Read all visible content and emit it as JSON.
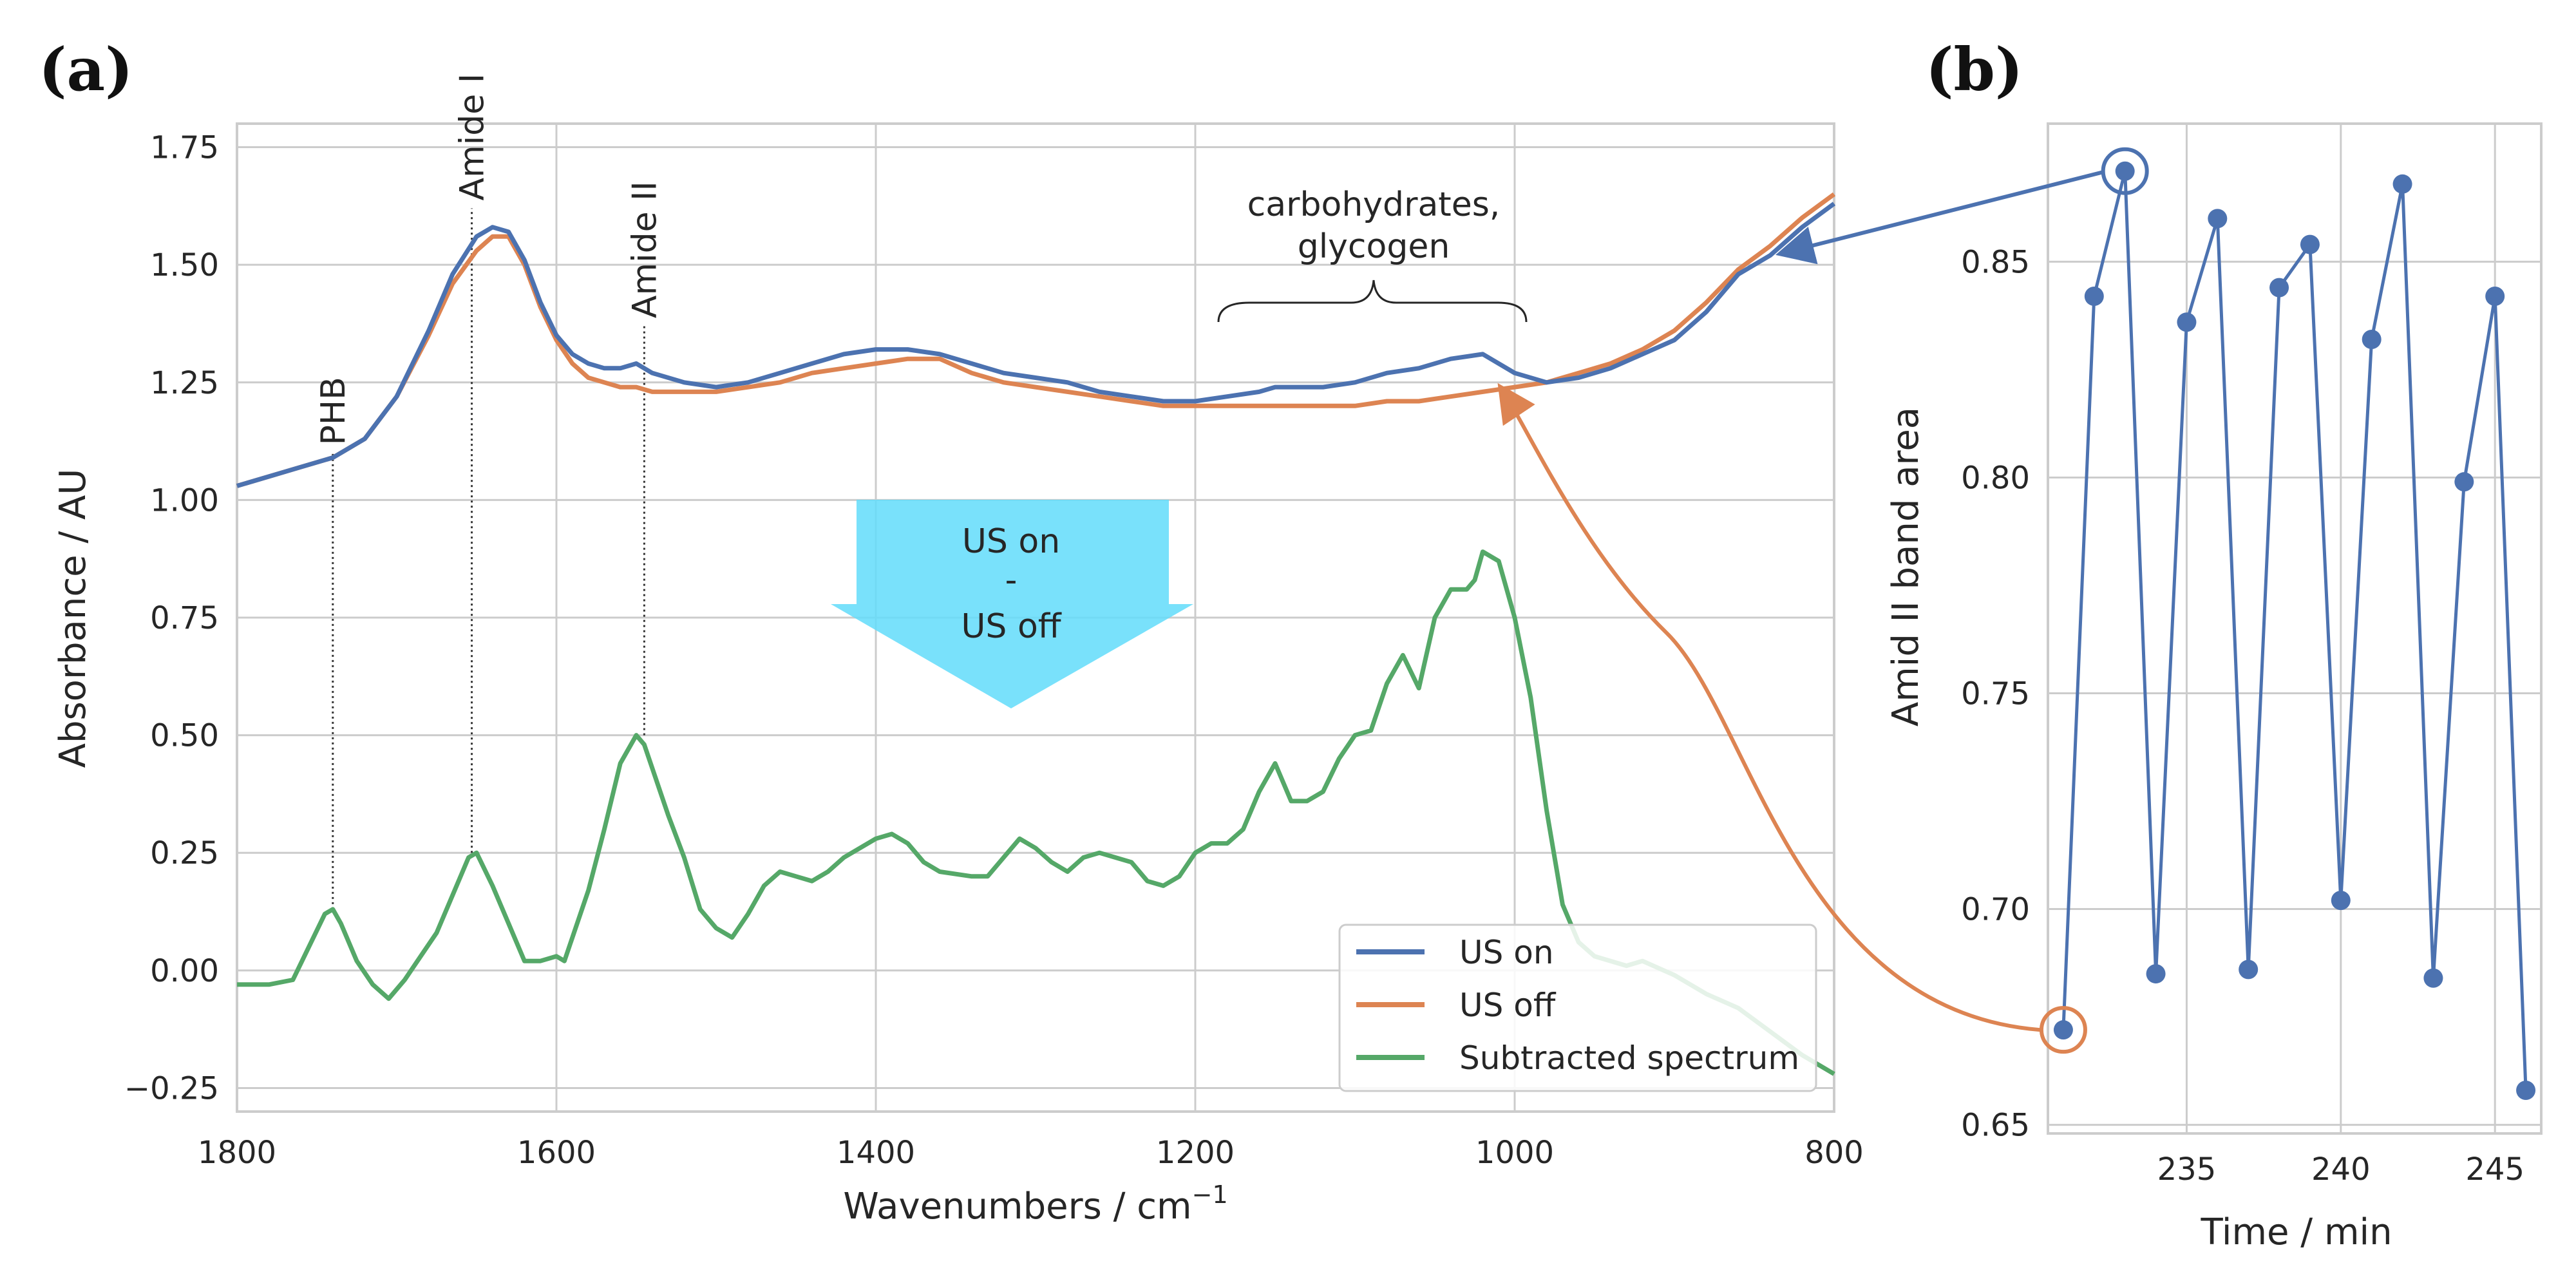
{
  "chart_data": [
    {
      "panel_label": "(a)",
      "type": "line",
      "xlabel": "Wavenumbers / cm",
      "xlabel_sup": "−1",
      "ylabel": "Absorbance / AU",
      "xlim": [
        1800,
        800
      ],
      "ylim": [
        -0.3,
        1.8
      ],
      "x_ticks": [
        1800,
        1600,
        1400,
        1200,
        1000,
        800
      ],
      "x_tick_labels": [
        "1800",
        "1600",
        "1400",
        "1200",
        "1000",
        "800"
      ],
      "y_ticks": [
        -0.25,
        0,
        0.25,
        0.5,
        0.75,
        1.0,
        1.25,
        1.5,
        1.75
      ],
      "y_tick_labels": [
        "−0.25",
        "0.00",
        "0.25",
        "0.50",
        "0.75",
        "1.00",
        "1.25",
        "1.50",
        "1.75"
      ],
      "series": [
        {
          "name": "US on",
          "color": "#4c72b0",
          "x": [
            1800,
            1780,
            1760,
            1740,
            1720,
            1700,
            1680,
            1665,
            1650,
            1640,
            1630,
            1620,
            1610,
            1600,
            1590,
            1580,
            1570,
            1560,
            1550,
            1540,
            1520,
            1500,
            1480,
            1460,
            1440,
            1420,
            1400,
            1380,
            1360,
            1340,
            1320,
            1300,
            1280,
            1260,
            1240,
            1220,
            1200,
            1180,
            1160,
            1150,
            1140,
            1120,
            1100,
            1080,
            1060,
            1040,
            1020,
            1000,
            980,
            960,
            940,
            920,
            900,
            880,
            860,
            840,
            820,
            800
          ],
          "y": [
            1.03,
            1.05,
            1.07,
            1.09,
            1.13,
            1.22,
            1.36,
            1.48,
            1.56,
            1.58,
            1.57,
            1.51,
            1.42,
            1.35,
            1.31,
            1.29,
            1.28,
            1.28,
            1.29,
            1.27,
            1.25,
            1.24,
            1.25,
            1.27,
            1.29,
            1.31,
            1.32,
            1.32,
            1.31,
            1.29,
            1.27,
            1.26,
            1.25,
            1.23,
            1.22,
            1.21,
            1.21,
            1.22,
            1.23,
            1.24,
            1.24,
            1.24,
            1.25,
            1.27,
            1.28,
            1.3,
            1.31,
            1.27,
            1.25,
            1.26,
            1.28,
            1.31,
            1.34,
            1.4,
            1.48,
            1.52,
            1.58,
            1.63
          ]
        },
        {
          "name": "US off",
          "color": "#dd8452",
          "x": [
            1800,
            1780,
            1760,
            1740,
            1720,
            1700,
            1680,
            1665,
            1650,
            1640,
            1630,
            1620,
            1610,
            1600,
            1590,
            1580,
            1570,
            1560,
            1550,
            1540,
            1520,
            1500,
            1480,
            1460,
            1440,
            1420,
            1400,
            1380,
            1360,
            1340,
            1320,
            1300,
            1280,
            1260,
            1240,
            1220,
            1200,
            1180,
            1160,
            1150,
            1140,
            1120,
            1100,
            1080,
            1060,
            1040,
            1020,
            1000,
            980,
            960,
            940,
            920,
            900,
            880,
            860,
            840,
            820,
            800
          ],
          "y": [
            1.03,
            1.05,
            1.07,
            1.09,
            1.13,
            1.22,
            1.35,
            1.46,
            1.53,
            1.56,
            1.56,
            1.5,
            1.41,
            1.34,
            1.29,
            1.26,
            1.25,
            1.24,
            1.24,
            1.23,
            1.23,
            1.23,
            1.24,
            1.25,
            1.27,
            1.28,
            1.29,
            1.3,
            1.3,
            1.27,
            1.25,
            1.24,
            1.23,
            1.22,
            1.21,
            1.2,
            1.2,
            1.2,
            1.2,
            1.2,
            1.2,
            1.2,
            1.2,
            1.21,
            1.21,
            1.22,
            1.23,
            1.24,
            1.25,
            1.27,
            1.29,
            1.32,
            1.36,
            1.42,
            1.49,
            1.54,
            1.6,
            1.65
          ]
        },
        {
          "name": "Subtracted spectrum",
          "color": "#55a868",
          "x": [
            1800,
            1780,
            1765,
            1755,
            1745,
            1740,
            1735,
            1725,
            1715,
            1705,
            1695,
            1685,
            1675,
            1665,
            1655,
            1650,
            1640,
            1630,
            1620,
            1610,
            1600,
            1595,
            1590,
            1580,
            1570,
            1560,
            1550,
            1545,
            1540,
            1530,
            1520,
            1510,
            1500,
            1490,
            1480,
            1470,
            1460,
            1450,
            1440,
            1430,
            1420,
            1400,
            1390,
            1380,
            1370,
            1360,
            1340,
            1330,
            1320,
            1310,
            1300,
            1290,
            1280,
            1270,
            1260,
            1250,
            1240,
            1230,
            1220,
            1210,
            1200,
            1190,
            1180,
            1170,
            1160,
            1150,
            1140,
            1130,
            1120,
            1110,
            1100,
            1090,
            1080,
            1070,
            1060,
            1050,
            1040,
            1030,
            1025,
            1020,
            1010,
            1000,
            990,
            980,
            970,
            960,
            950,
            930,
            920,
            900,
            880,
            860,
            840,
            820,
            800
          ],
          "y": [
            -0.03,
            -0.03,
            -0.02,
            0.05,
            0.12,
            0.13,
            0.1,
            0.02,
            -0.03,
            -0.06,
            -0.02,
            0.03,
            0.08,
            0.16,
            0.24,
            0.25,
            0.18,
            0.1,
            0.02,
            0.02,
            0.03,
            0.02,
            0.07,
            0.17,
            0.3,
            0.44,
            0.5,
            0.48,
            0.43,
            0.33,
            0.24,
            0.13,
            0.09,
            0.07,
            0.12,
            0.18,
            0.21,
            0.2,
            0.19,
            0.21,
            0.24,
            0.28,
            0.29,
            0.27,
            0.23,
            0.21,
            0.2,
            0.2,
            0.24,
            0.28,
            0.26,
            0.23,
            0.21,
            0.24,
            0.25,
            0.24,
            0.23,
            0.19,
            0.18,
            0.2,
            0.25,
            0.27,
            0.27,
            0.3,
            0.38,
            0.44,
            0.36,
            0.36,
            0.38,
            0.45,
            0.5,
            0.51,
            0.61,
            0.67,
            0.6,
            0.75,
            0.81,
            0.81,
            0.83,
            0.89,
            0.87,
            0.75,
            0.58,
            0.34,
            0.14,
            0.06,
            0.03,
            0.01,
            0.02,
            -0.01,
            -0.05,
            -0.08,
            -0.13,
            -0.18,
            -0.22
          ]
        }
      ],
      "annotations": [
        {
          "text": "PHB",
          "x": 1740,
          "y_from": 0.13,
          "y_to": 1.1
        },
        {
          "text": "Amide I",
          "x": 1653,
          "y_from": 0.25,
          "y_to": 1.62
        },
        {
          "text": "Amide II",
          "x": 1545,
          "y_from": 0.5,
          "y_to": 1.37
        },
        {
          "text": "carbohydrates,",
          "x": 1000
        },
        {
          "text": "glycogen",
          "x": 1000
        }
      ],
      "arrow_label": [
        "US on",
        "-",
        "US off"
      ],
      "legend": [
        "US on",
        "US off",
        "Subtracted spectrum"
      ],
      "legend_position": "lower-right",
      "grid": true
    },
    {
      "panel_label": "(b)",
      "type": "line",
      "xlabel": "Time / min",
      "ylabel": "Amid II band area",
      "xlim": [
        230.5,
        246.5
      ],
      "ylim": [
        0.648,
        0.882
      ],
      "x_ticks": [
        235,
        240,
        245
      ],
      "x_tick_labels": [
        "235",
        "240",
        "245"
      ],
      "y_ticks": [
        0.65,
        0.7,
        0.75,
        0.8,
        0.85
      ],
      "y_tick_labels": [
        "0.65",
        "0.70",
        "0.75",
        "0.80",
        "0.85"
      ],
      "series": [
        {
          "name": "Amid II band area",
          "color": "#4c72b0",
          "x": [
            231,
            232,
            233,
            234,
            235,
            236,
            237,
            238,
            239,
            240,
            241,
            242,
            243,
            244,
            245,
            246
          ],
          "y": [
            0.672,
            0.842,
            0.871,
            0.685,
            0.836,
            0.86,
            0.686,
            0.844,
            0.854,
            0.702,
            0.832,
            0.868,
            0.684,
            0.799,
            0.842,
            0.658
          ]
        }
      ],
      "highlighted": [
        {
          "x": 233,
          "y": 0.871,
          "color": "#4c72b0"
        },
        {
          "x": 231,
          "y": 0.672,
          "color": "#dd8452"
        }
      ],
      "grid": true
    }
  ]
}
